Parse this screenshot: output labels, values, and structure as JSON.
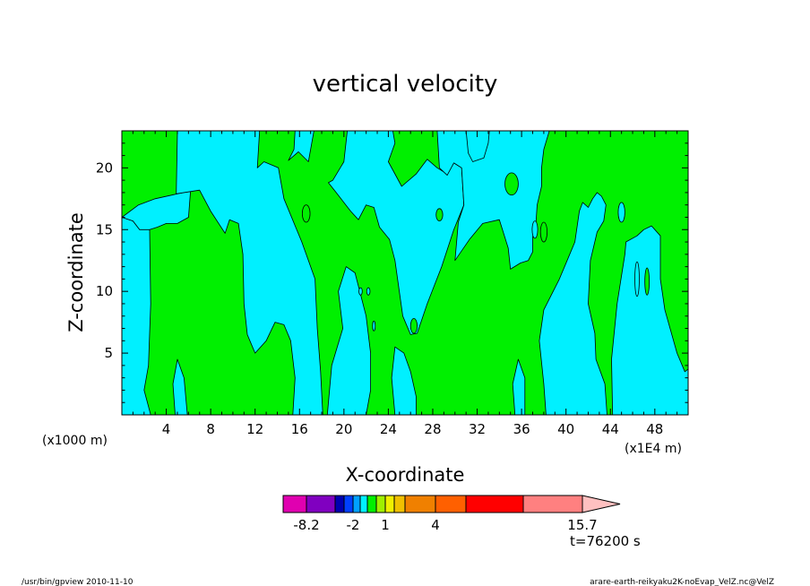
{
  "chart_data": {
    "type": "heatmap",
    "title": "vertical velocity",
    "xlabel": "X-coordinate",
    "ylabel": "Z-coordinate",
    "x_unit_left": "(x1000 m)",
    "x_unit_right": "(x1E4 m)",
    "xlim": [
      0,
      51
    ],
    "ylim": [
      0,
      23
    ],
    "x_ticks": [
      4,
      8,
      12,
      16,
      20,
      24,
      28,
      32,
      36,
      40,
      44,
      48
    ],
    "x_tick_labels": [
      "4",
      "8",
      "12",
      "16",
      "20",
      "24",
      "28",
      "32",
      "36",
      "40",
      "44",
      "48"
    ],
    "y_ticks": [
      5,
      10,
      15,
      20
    ],
    "y_tick_labels": [
      "5",
      "10",
      "15",
      "20"
    ],
    "time_label": "t=76200 s",
    "background_color": "#00f000",
    "regions": [
      {
        "name": "cyan-region-1",
        "color": "#00f0ff",
        "points": [
          [
            0,
            0
          ],
          [
            0,
            16
          ],
          [
            1.0,
            15.7
          ],
          [
            1.6,
            15.0
          ],
          [
            2.2,
            15.3
          ],
          [
            2.5,
            15.0
          ],
          [
            2.6,
            9.0
          ],
          [
            2.4,
            4.0
          ],
          [
            2.0,
            2.0
          ],
          [
            2.6,
            0
          ]
        ]
      },
      {
        "name": "cyan-region-2",
        "color": "#00f0ff",
        "points": [
          [
            0,
            16
          ],
          [
            1.5,
            17.0
          ],
          [
            3,
            17.5
          ],
          [
            4.5,
            17.8
          ],
          [
            5.5,
            18.0
          ],
          [
            6.2,
            18.3
          ],
          [
            6.0,
            16.0
          ],
          [
            5.0,
            15.5
          ],
          [
            4.0,
            15.5
          ],
          [
            3.2,
            15.2
          ],
          [
            2.5,
            15.0
          ],
          [
            1.6,
            15.0
          ],
          [
            1.0,
            15.7
          ]
        ]
      },
      {
        "name": "cyan-region-3",
        "color": "#00f0ff",
        "points": [
          [
            4.8,
            0
          ],
          [
            4.6,
            2.5
          ],
          [
            5.0,
            4.5
          ],
          [
            5.6,
            3.0
          ],
          [
            5.9,
            0
          ]
        ]
      },
      {
        "name": "cyan-region-4",
        "color": "#00f0ff",
        "points": [
          [
            5.0,
            23
          ],
          [
            4.9,
            17.9
          ],
          [
            7.0,
            18.2
          ],
          [
            8.0,
            16.5
          ],
          [
            9.3,
            14.7
          ],
          [
            9.7,
            15.8
          ],
          [
            10.5,
            15.5
          ],
          [
            10.9,
            13.0
          ],
          [
            11.0,
            9.0
          ],
          [
            11.3,
            6.5
          ],
          [
            12.0,
            5.0
          ],
          [
            13.0,
            6.0
          ],
          [
            13.8,
            7.5
          ],
          [
            14.6,
            7.3
          ],
          [
            15.2,
            6.0
          ],
          [
            15.6,
            3.0
          ],
          [
            15.4,
            0
          ],
          [
            18.1,
            0
          ],
          [
            17.9,
            3.5
          ],
          [
            17.6,
            7.0
          ],
          [
            17.4,
            11.0
          ],
          [
            16.2,
            14.0
          ],
          [
            14.6,
            17.5
          ],
          [
            14.1,
            20.0
          ],
          [
            12.8,
            20.5
          ],
          [
            12.2,
            20.0
          ],
          [
            12.4,
            23
          ]
        ]
      },
      {
        "name": "cyan-region-5",
        "color": "#00f0ff",
        "points": [
          [
            15.6,
            23
          ],
          [
            15.5,
            21.5
          ],
          [
            15.0,
            20.6
          ],
          [
            15.9,
            21.3
          ],
          [
            16.8,
            20.5
          ],
          [
            17.1,
            22.0
          ],
          [
            17.3,
            23
          ]
        ]
      },
      {
        "name": "cyan-region-6",
        "color": "#00f0ff",
        "points": [
          [
            20.3,
            23
          ],
          [
            20.0,
            20.5
          ],
          [
            19.0,
            19.0
          ],
          [
            18.6,
            18.8
          ],
          [
            19.3,
            18.0
          ],
          [
            20.6,
            16.5
          ],
          [
            21.3,
            15.8
          ],
          [
            22.0,
            17.0
          ],
          [
            22.7,
            16.8
          ],
          [
            23.2,
            15.2
          ],
          [
            24.1,
            14.2
          ],
          [
            24.6,
            12.5
          ],
          [
            25.3,
            8.0
          ],
          [
            26.0,
            6.5
          ],
          [
            26.6,
            6.6
          ],
          [
            27.5,
            9.0
          ],
          [
            28.8,
            12.0
          ],
          [
            29.9,
            15.0
          ],
          [
            30.8,
            17.0
          ],
          [
            30.6,
            20.0
          ],
          [
            29.9,
            20.4
          ],
          [
            29.3,
            19.5
          ],
          [
            28.4,
            20.0
          ],
          [
            27.5,
            20.7
          ],
          [
            26.5,
            19.5
          ],
          [
            25.2,
            18.5
          ],
          [
            24.0,
            20.5
          ],
          [
            24.6,
            22.0
          ],
          [
            24.4,
            23
          ]
        ]
      },
      {
        "name": "cyan-region-7",
        "color": "#00f0ff",
        "points": [
          [
            18.5,
            0
          ],
          [
            18.9,
            4.0
          ],
          [
            19.9,
            7.0
          ],
          [
            19.5,
            10.0
          ],
          [
            20.2,
            12.0
          ],
          [
            21.0,
            11.5
          ],
          [
            22.0,
            8.0
          ],
          [
            22.4,
            5.0
          ],
          [
            22.4,
            2.0
          ],
          [
            22.0,
            0
          ]
        ]
      },
      {
        "name": "cyan-region-8",
        "color": "#00f0ff",
        "points": [
          [
            24.6,
            0
          ],
          [
            24.3,
            3.0
          ],
          [
            24.6,
            5.5
          ],
          [
            25.4,
            5.0
          ],
          [
            26.0,
            3.5
          ],
          [
            26.5,
            1.5
          ],
          [
            26.5,
            0
          ]
        ]
      },
      {
        "name": "cyan-region-9",
        "color": "#00f0ff",
        "points": [
          [
            28.4,
            23
          ],
          [
            28.6,
            20.0
          ],
          [
            29.3,
            19.4
          ],
          [
            29.9,
            20.4
          ],
          [
            30.6,
            20.0
          ],
          [
            30.8,
            17.0
          ],
          [
            30.3,
            15.6
          ],
          [
            30.0,
            12.5
          ],
          [
            31.3,
            14.2
          ],
          [
            32.5,
            15.5
          ],
          [
            34.0,
            15.8
          ],
          [
            34.8,
            13.5
          ],
          [
            35.0,
            11.8
          ],
          [
            35.9,
            12.3
          ],
          [
            36.6,
            12.5
          ],
          [
            37.0,
            13.2
          ],
          [
            37.0,
            14.4
          ],
          [
            37.3,
            15.6
          ],
          [
            37.4,
            17.0
          ],
          [
            37.8,
            18.5
          ],
          [
            37.8,
            20.0
          ],
          [
            38.0,
            21.5
          ],
          [
            38.5,
            23
          ]
        ]
      },
      {
        "name": "cyan-region-10",
        "color": "#00f0ff",
        "points": [
          [
            31.0,
            23
          ],
          [
            31.2,
            21.2
          ],
          [
            31.6,
            20.5
          ],
          [
            32.6,
            20.8
          ],
          [
            33.0,
            22.0
          ],
          [
            33.1,
            23
          ]
        ]
      },
      {
        "name": "cyan-region-11",
        "color": "#00f0ff",
        "points": [
          [
            35.4,
            0
          ],
          [
            35.2,
            2.5
          ],
          [
            35.7,
            4.5
          ],
          [
            36.3,
            3.0
          ],
          [
            36.3,
            0
          ]
        ]
      },
      {
        "name": "cyan-region-12",
        "color": "#00f0ff",
        "points": [
          [
            38.2,
            0
          ],
          [
            38.0,
            2.5
          ],
          [
            37.6,
            6.0
          ],
          [
            38.0,
            8.5
          ],
          [
            39.4,
            11.0
          ],
          [
            40.8,
            14.0
          ],
          [
            41.2,
            16.5
          ],
          [
            41.5,
            17.2
          ],
          [
            42.0,
            16.8
          ],
          [
            42.4,
            17.5
          ],
          [
            42.8,
            18.0
          ],
          [
            43.2,
            17.7
          ],
          [
            43.6,
            17.0
          ],
          [
            43.4,
            15.7
          ],
          [
            42.8,
            14.8
          ],
          [
            42.2,
            12.5
          ],
          [
            42.0,
            9.0
          ],
          [
            42.6,
            6.6
          ],
          [
            42.7,
            4.5
          ],
          [
            43.5,
            2.5
          ],
          [
            43.7,
            0
          ]
        ]
      },
      {
        "name": "cyan-region-13",
        "color": "#00f0ff",
        "points": [
          [
            44.2,
            0
          ],
          [
            44.1,
            4.5
          ],
          [
            44.6,
            9.0
          ],
          [
            45.3,
            13.0
          ],
          [
            45.4,
            14.0
          ],
          [
            46.4,
            14.5
          ],
          [
            47.0,
            15.0
          ],
          [
            47.7,
            15.3
          ],
          [
            48.5,
            14.5
          ],
          [
            48.5,
            11.0
          ],
          [
            48.9,
            8.5
          ],
          [
            50.0,
            5.0
          ],
          [
            50.7,
            3.5
          ],
          [
            51,
            3.7
          ],
          [
            51,
            0
          ]
        ]
      }
    ],
    "islands": [
      {
        "name": "green-island-1",
        "color": "#00f000",
        "cx": 16.6,
        "cy": 16.3,
        "rx": 0.35,
        "ry": 0.7
      },
      {
        "name": "green-island-2",
        "color": "#00f000",
        "cx": 35.1,
        "cy": 18.7,
        "rx": 0.6,
        "ry": 0.9
      },
      {
        "name": "green-island-3",
        "color": "#00f000",
        "cx": 28.6,
        "cy": 16.2,
        "rx": 0.3,
        "ry": 0.5
      },
      {
        "name": "green-island-4",
        "color": "#00f000",
        "cx": 38.0,
        "cy": 14.8,
        "rx": 0.3,
        "ry": 0.8
      },
      {
        "name": "green-island-5",
        "color": "#00f000",
        "cx": 26.3,
        "cy": 7.2,
        "rx": 0.3,
        "ry": 0.6
      },
      {
        "name": "green-island-6",
        "color": "#00f000",
        "cx": 47.3,
        "cy": 10.8,
        "rx": 0.2,
        "ry": 1.1
      },
      {
        "name": "cyan-island-1",
        "color": "#00f0ff",
        "cx": 45.0,
        "cy": 16.4,
        "rx": 0.3,
        "ry": 0.8
      },
      {
        "name": "cyan-island-2",
        "color": "#00f0ff",
        "cx": 37.2,
        "cy": 15.0,
        "rx": 0.25,
        "ry": 0.7
      },
      {
        "name": "cyan-island-3",
        "color": "#00f0ff",
        "cx": 46.4,
        "cy": 11.0,
        "rx": 0.2,
        "ry": 1.4
      },
      {
        "name": "cyan-island-4",
        "color": "#00f0ff",
        "cx": 21.5,
        "cy": 10.0,
        "rx": 0.15,
        "ry": 0.3
      },
      {
        "name": "cyan-island-5",
        "color": "#00f0ff",
        "cx": 22.2,
        "cy": 10.0,
        "rx": 0.15,
        "ry": 0.3
      },
      {
        "name": "cyan-island-6",
        "color": "#00f0ff",
        "cx": 22.7,
        "cy": 7.2,
        "rx": 0.12,
        "ry": 0.4
      }
    ],
    "colorbar": {
      "colors": [
        "#e000b0",
        "#8000c0",
        "#0000b0",
        "#0040ff",
        "#00a0ff",
        "#00f0ff",
        "#00f000",
        "#a0f000",
        "#f0f000",
        "#f0c000",
        "#f08000",
        "#ff6000",
        "#ff0000",
        "#ff8080",
        "#ffc0c0"
      ],
      "widths": [
        26,
        32,
        10,
        10,
        8,
        8,
        10,
        10,
        10,
        12,
        34,
        34,
        64,
        66,
        42
      ],
      "labels": [
        "-8.2",
        "-2",
        "1",
        "4",
        "15.7"
      ],
      "label_at_boundary": [
        1,
        4,
        8,
        11,
        14
      ]
    }
  },
  "footer": {
    "left": "/usr/bin/gpview   2010-11-10",
    "right": "arare-earth-reikyaku2K-noEvap_VelZ.nc@VelZ"
  }
}
